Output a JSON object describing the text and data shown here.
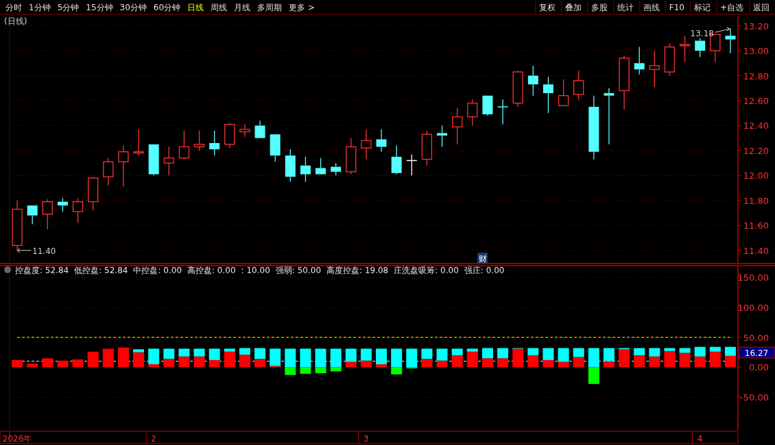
{
  "chart_data": [
    {
      "type": "other",
      "annotations": [
        "分时",
        "1分钟",
        "5分钟",
        "15分钟",
        "30分钟",
        "60分钟",
        "日线",
        "周线",
        "月线",
        "多周期",
        "更多 >",
        "复权",
        "叠加",
        "多股",
        "统计",
        "画线",
        "F10",
        "标记",
        "+自选",
        "返回"
      ]
    },
    {
      "type": "candlestick",
      "title": "(日线)",
      "tick_labels": "y",
      "grid": "y",
      "categories": [
        null,
        null,
        null,
        null,
        null,
        null,
        null,
        null,
        null,
        null,
        null,
        null,
        null,
        null,
        null,
        null,
        null,
        null,
        null,
        null,
        null,
        null,
        null,
        null,
        null,
        null,
        null,
        null,
        null,
        null,
        null,
        null,
        null,
        null,
        null,
        null,
        null,
        null,
        null,
        null,
        null,
        null,
        null,
        null,
        null,
        null,
        null,
        null
      ],
      "ohlc": [
        [
          11.44,
          11.8,
          11.4,
          11.73
        ],
        [
          11.76,
          11.76,
          11.61,
          11.68
        ],
        [
          11.69,
          11.81,
          11.57,
          11.79
        ],
        [
          11.79,
          11.82,
          11.71,
          11.76
        ],
        [
          11.71,
          11.82,
          11.62,
          11.79
        ],
        [
          11.79,
          11.99,
          11.72,
          11.98
        ],
        [
          11.99,
          12.14,
          11.92,
          12.11
        ],
        [
          12.11,
          12.24,
          11.91,
          12.19
        ],
        [
          12.18,
          12.37,
          12.16,
          12.19
        ],
        [
          12.25,
          12.25,
          12.0,
          12.01
        ],
        [
          12.1,
          12.23,
          12.0,
          12.14
        ],
        [
          12.14,
          12.36,
          12.13,
          12.23
        ],
        [
          12.23,
          12.36,
          12.2,
          12.25
        ],
        [
          12.26,
          12.36,
          12.16,
          12.21
        ],
        [
          12.25,
          12.42,
          12.22,
          12.41
        ],
        [
          12.35,
          12.41,
          12.31,
          12.37
        ],
        [
          12.4,
          12.44,
          12.3,
          12.3
        ],
        [
          12.33,
          12.33,
          12.11,
          12.16
        ],
        [
          12.16,
          12.21,
          11.95,
          11.99
        ],
        [
          12.08,
          12.15,
          11.95,
          12.01
        ],
        [
          12.06,
          12.14,
          12.01,
          12.01
        ],
        [
          12.07,
          12.1,
          12.0,
          12.03
        ],
        [
          12.03,
          12.3,
          12.01,
          12.23
        ],
        [
          12.22,
          12.37,
          12.13,
          12.28
        ],
        [
          12.29,
          12.37,
          12.19,
          12.23
        ],
        [
          12.15,
          12.24,
          12.01,
          12.02
        ],
        [
          12.12,
          12.17,
          12.0,
          12.12
        ],
        [
          12.13,
          12.36,
          12.08,
          12.33
        ],
        [
          12.34,
          12.4,
          12.23,
          12.32
        ],
        [
          12.39,
          12.54,
          12.25,
          12.47
        ],
        [
          12.47,
          12.61,
          12.4,
          12.58
        ],
        [
          12.64,
          12.64,
          12.48,
          12.49
        ],
        [
          12.55,
          12.61,
          12.41,
          12.55
        ],
        [
          12.58,
          12.84,
          12.55,
          12.83
        ],
        [
          12.8,
          12.88,
          12.64,
          12.73
        ],
        [
          12.73,
          12.79,
          12.5,
          12.66
        ],
        [
          12.56,
          12.77,
          12.56,
          12.64
        ],
        [
          12.65,
          12.84,
          12.61,
          12.76
        ],
        [
          12.55,
          12.64,
          12.13,
          12.19
        ],
        [
          12.66,
          12.7,
          12.25,
          12.64
        ],
        [
          12.68,
          12.96,
          12.53,
          12.94
        ],
        [
          12.9,
          13.03,
          12.81,
          12.85
        ],
        [
          12.85,
          13.0,
          12.71,
          12.88
        ],
        [
          12.83,
          13.06,
          12.8,
          13.03
        ],
        [
          13.04,
          13.12,
          12.91,
          13.05
        ],
        [
          13.08,
          13.1,
          12.95,
          13.0
        ],
        [
          13.0,
          13.13,
          12.91,
          13.13
        ],
        [
          13.12,
          13.18,
          12.98,
          13.09
        ]
      ],
      "colors": [
        "#ff3232",
        "#54ffff",
        "#ff3232",
        "#54ffff",
        "#ff3232",
        "#ff3232",
        "#ff3232",
        "#ff3232",
        "#ff3232",
        "#54ffff",
        "#ff3232",
        "#ff3232",
        "#ff3232",
        "#54ffff",
        "#ff3232",
        "#ff3232",
        "#54ffff",
        "#54ffff",
        "#54ffff",
        "#54ffff",
        "#54ffff",
        "#54ffff",
        "#ff3232",
        "#ff3232",
        "#54ffff",
        "#54ffff",
        "#ffffff",
        "#ff3232",
        "#54ffff",
        "#ff3232",
        "#ff3232",
        "#54ffff",
        "#54ffff",
        "#ff3232",
        "#54ffff",
        "#54ffff",
        "#ff3232",
        "#ff3232",
        "#54ffff",
        "#54ffff",
        "#ff3232",
        "#54ffff",
        "#ff3232",
        "#ff3232",
        "#ff3232",
        "#54ffff",
        "#ff3232",
        "#54ffff"
      ],
      "ylim": [
        11.3,
        13.28
      ],
      "yticks": [
        {
          "value": 11.4,
          "label": "11.40"
        },
        {
          "value": 11.6,
          "label": "11.60"
        },
        {
          "value": 11.8,
          "label": "11.80"
        },
        {
          "value": 12.0,
          "label": "12.00"
        },
        {
          "value": 12.2,
          "label": "12.20"
        },
        {
          "value": 12.4,
          "label": "12.40"
        },
        {
          "value": 12.6,
          "label": "12.60"
        },
        {
          "value": 12.8,
          "label": "12.80"
        },
        {
          "value": 13.0,
          "label": "13.00"
        },
        {
          "value": 13.2,
          "label": "13.20"
        }
      ],
      "annotations": [
        "13.18",
        "11.40",
        "财"
      ]
    },
    {
      "type": "bar",
      "grid": "y",
      "stacked": true,
      "categories": [
        "2026年",
        null,
        null,
        null,
        null,
        null,
        null,
        null,
        null,
        "2",
        null,
        null,
        null,
        null,
        null,
        null,
        null,
        null,
        null,
        null,
        null,
        null,
        null,
        "3",
        null,
        null,
        null,
        null,
        null,
        null,
        null,
        null,
        null,
        null,
        null,
        null,
        null,
        null,
        null,
        null,
        null,
        null,
        null,
        null,
        null,
        "4",
        null,
        null
      ],
      "series": [
        {
          "color": "#ff0000",
          "values": [
            12,
            6,
            15,
            11,
            13,
            26,
            31,
            33,
            25,
            5,
            14,
            18,
            18,
            12,
            26,
            21,
            14,
            2,
            null,
            null,
            null,
            null,
            9,
            11,
            5,
            null,
            null,
            14,
            11,
            20,
            26,
            15,
            15,
            31,
            20,
            12,
            9,
            17,
            null,
            10,
            30,
            20,
            18,
            27,
            24,
            18,
            26,
            19
          ]
        },
        {
          "color": "#00ffff",
          "values": [
            null,
            null,
            null,
            null,
            null,
            null,
            null,
            null,
            5,
            26,
            17,
            13,
            13,
            19,
            5,
            11,
            18,
            29,
            31,
            31,
            31,
            31,
            22,
            20,
            26,
            31,
            31,
            17,
            20,
            11,
            5,
            17,
            17,
            1,
            12,
            20,
            23,
            15,
            32,
            22,
            2,
            12,
            14,
            5,
            8,
            16,
            8,
            15
          ]
        },
        {
          "color": "#00ff00",
          "values": [
            null,
            null,
            null,
            null,
            null,
            null,
            null,
            null,
            null,
            null,
            null,
            null,
            null,
            null,
            null,
            null,
            null,
            null,
            -13,
            -11,
            -10,
            -7,
            null,
            null,
            null,
            -12,
            -2,
            null,
            null,
            null,
            null,
            null,
            null,
            null,
            null,
            null,
            null,
            null,
            -28,
            null,
            null,
            null,
            null,
            null,
            null,
            null,
            null,
            null
          ]
        }
      ],
      "ylim": [
        -105,
        170
      ],
      "yticks": [
        {
          "value": -50,
          "label": "-50.00"
        },
        {
          "value": 0,
          "label": "0.00"
        },
        {
          "value": 50,
          "label": "50.00"
        },
        {
          "value": 100,
          "label": "100.00"
        },
        {
          "value": 150,
          "label": "150.00"
        }
      ],
      "ref_lines": [
        {
          "axis": "y",
          "value": 50,
          "color": "#ffff00",
          "line_style": "dashed"
        },
        {
          "axis": "y",
          "value": 10,
          "color": "#ffffff",
          "line_style": "dashed"
        }
      ],
      "annotations": [
        "控盘度: 52.84",
        "低控盘: 52.84",
        "中控盘: 0.00",
        "高控盘: 0.00",
        ": 10.00",
        "强弱: 50.00",
        "高度控盘: 19.08",
        "庄洗盘吸筹: 0.00",
        "强庄: 0.00",
        "16.27"
      ]
    }
  ]
}
